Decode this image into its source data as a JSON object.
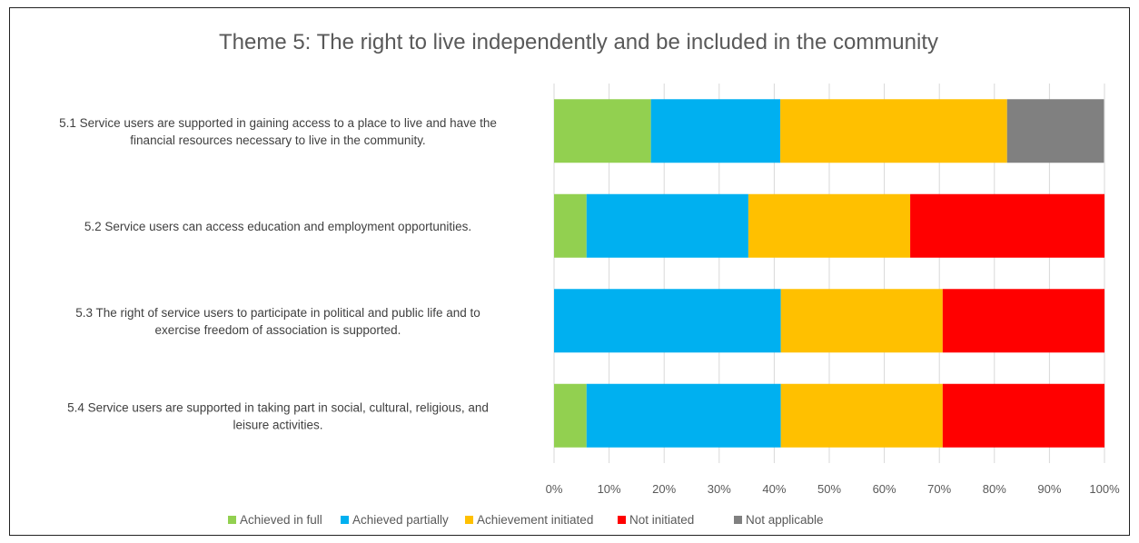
{
  "chart_data": {
    "type": "bar",
    "orientation": "horizontal",
    "stacked": "percent",
    "title": "Theme 5: The right to live independently and be included in the community",
    "categories": [
      [
        "5.1 Service users are supported in gaining access to a place to live and have the",
        "financial resources necessary to live in the community."
      ],
      [
        "5.2 Service users can access education and employment opportunities."
      ],
      [
        "5.3 The right of service users to participate in political and public life and to",
        "exercise freedom of association is supported."
      ],
      [
        "5.4 Service users are supported in taking part in social, cultural, religious, and",
        "leisure activities."
      ]
    ],
    "series": [
      {
        "name": "Achieved in full",
        "color": "#92D050",
        "values": [
          17.6,
          5.9,
          0,
          5.9
        ]
      },
      {
        "name": "Achieved partially",
        "color": "#00B0F0",
        "values": [
          23.5,
          29.4,
          41.2,
          35.3
        ]
      },
      {
        "name": "Achievement initiated",
        "color": "#FFC000",
        "values": [
          41.2,
          29.4,
          29.4,
          29.4
        ]
      },
      {
        "name": "Not initiated",
        "color": "#FF0000",
        "values": [
          0,
          35.3,
          29.4,
          29.4
        ]
      },
      {
        "name": "Not applicable",
        "color": "#808080",
        "values": [
          17.6,
          0,
          0,
          0
        ]
      }
    ],
    "xticks": [
      "0%",
      "10%",
      "20%",
      "30%",
      "40%",
      "50%",
      "60%",
      "70%",
      "80%",
      "90%",
      "100%"
    ],
    "xlim": [
      0,
      100
    ],
    "grid": true,
    "legend": "bottom",
    "gridColor": "#D9D9D9"
  }
}
